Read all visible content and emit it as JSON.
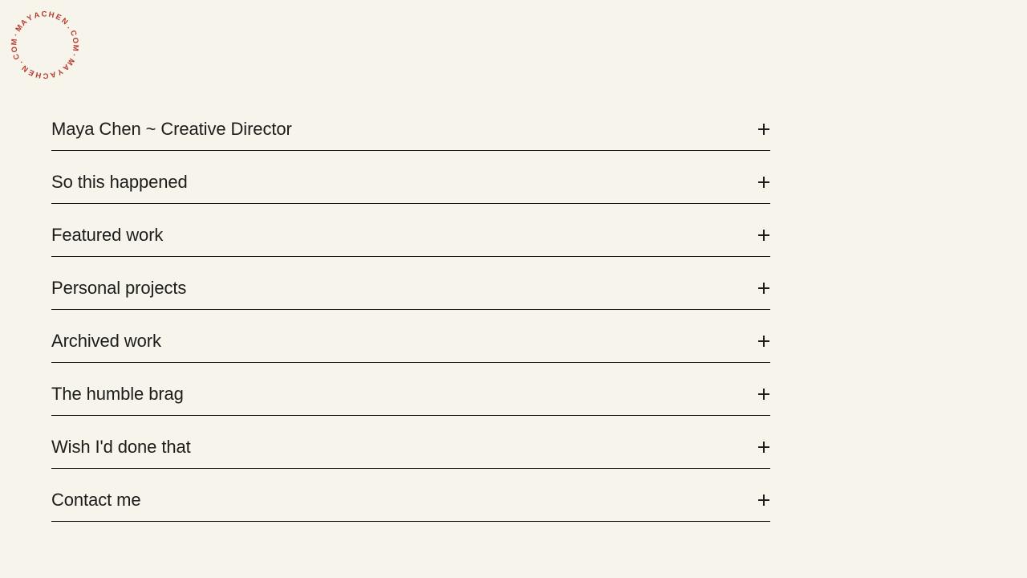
{
  "page": {
    "background_color": "#f7f4ec",
    "text_color": "#1d1c1a",
    "rule_color": "#1b1a18",
    "accent_red": "#b73a2c"
  },
  "logo": {
    "text": "MAYACHEN.COM·MAYACHEN.COM·",
    "site": "mayachen.com"
  },
  "menu": {
    "toggle_icon": "plus-icon",
    "items": [
      {
        "label": "Maya Chen ~ Creative Director"
      },
      {
        "label": "So this happened"
      },
      {
        "label": "Featured work"
      },
      {
        "label": "Personal projects"
      },
      {
        "label": "Archived work"
      },
      {
        "label": "The humble brag"
      },
      {
        "label": "Wish I'd done that"
      },
      {
        "label": "Contact me"
      }
    ]
  }
}
